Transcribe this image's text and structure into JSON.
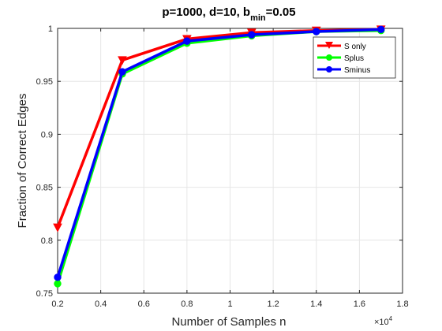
{
  "chart_data": {
    "type": "line",
    "title_parts": {
      "main": "p=1000,  d=10, b",
      "subscript": "min",
      "suffix": "=0.05"
    },
    "xlabel": "Number of Samples n",
    "ylabel": "Fraction of Correct Edges",
    "x_multiplier_label": {
      "base": "×10",
      "exponent": "4"
    },
    "x_scale": 10000,
    "xlim": [
      0.2,
      1.8
    ],
    "ylim": [
      0.75,
      1
    ],
    "x_ticks": [
      0.2,
      0.4,
      0.6,
      0.8,
      1,
      1.2,
      1.4,
      1.6,
      1.8
    ],
    "y_ticks": [
      0.75,
      0.8,
      0.85,
      0.9,
      0.95,
      1
    ],
    "grid": true,
    "legend_position": "top-right",
    "series": [
      {
        "name": "S only",
        "color": "#ff0000",
        "marker": "triangle-down",
        "x": [
          0.2,
          0.5,
          0.8,
          1.1,
          1.4,
          1.7
        ],
        "y": [
          0.812,
          0.97,
          0.99,
          0.996,
          0.998,
          0.999
        ]
      },
      {
        "name": "Splus",
        "color": "#00ff00",
        "marker": "circle",
        "x": [
          0.2,
          0.5,
          0.8,
          1.1,
          1.4,
          1.7
        ],
        "y": [
          0.759,
          0.957,
          0.986,
          0.993,
          0.997,
          0.998
        ]
      },
      {
        "name": "Sminus",
        "color": "#0000ff",
        "marker": "circle",
        "x": [
          0.2,
          0.5,
          0.8,
          1.1,
          1.4,
          1.7
        ],
        "y": [
          0.765,
          0.959,
          0.988,
          0.994,
          0.997,
          0.999
        ]
      }
    ]
  }
}
